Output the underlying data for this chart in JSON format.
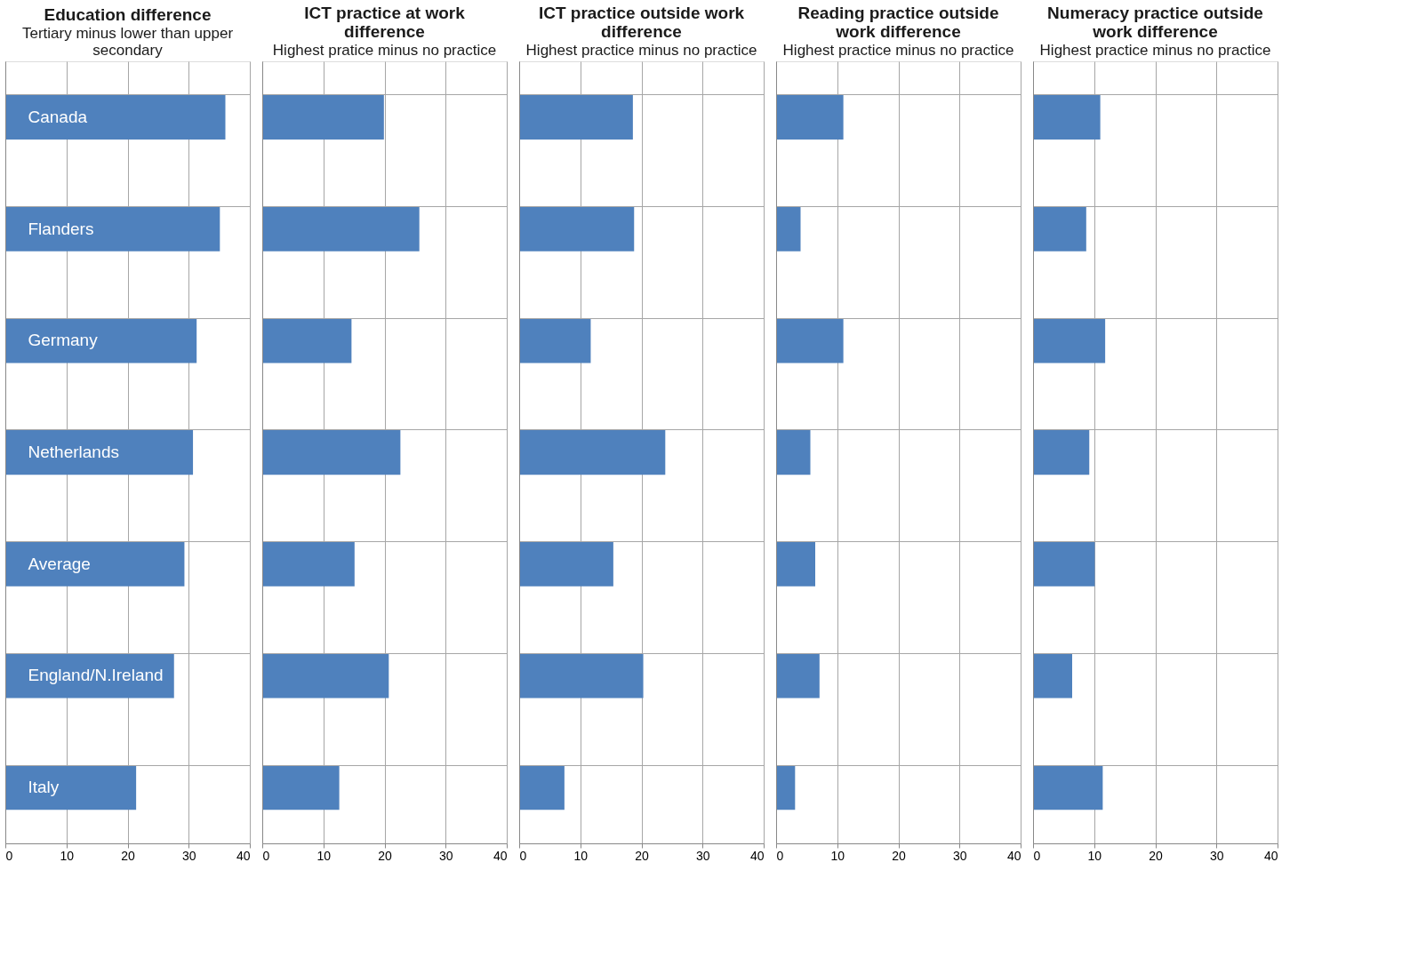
{
  "chart_data": [
    {
      "type": "bar",
      "orientation": "horizontal",
      "title": "Education  difference",
      "subtitle": "Tertiary minus lower than upper secondary",
      "categories": [
        "Canada",
        "Flanders",
        "Germany",
        "Netherlands",
        "Average",
        "England/N.Ireland",
        "Italy"
      ],
      "values": [
        36.0,
        35.1,
        31.3,
        30.7,
        29.3,
        27.6,
        21.4
      ],
      "color": "#4f81bd",
      "xlim": [
        0,
        40
      ],
      "xticks": [
        0,
        10,
        20,
        30,
        40
      ],
      "grid": true
    },
    {
      "type": "bar",
      "orientation": "horizontal",
      "title": "ICT practice at work difference",
      "subtitle": "Highest pratice minus no practice",
      "categories": [
        null,
        null,
        null,
        null,
        null,
        null,
        null
      ],
      "values": [
        19.9,
        25.7,
        14.6,
        22.6,
        15.1,
        20.7,
        12.6
      ],
      "color": "#4f81bd",
      "xlim": [
        0,
        40
      ],
      "xticks": [
        0,
        10,
        20,
        30,
        40
      ],
      "grid": true,
      "tick_labels": "x"
    },
    {
      "type": "bar",
      "orientation": "horizontal",
      "title": "ICT practice outside work difference",
      "subtitle": "Highest practice minus no practice",
      "categories": [
        null,
        null,
        null,
        null,
        null,
        null,
        null
      ],
      "values": [
        18.6,
        18.8,
        11.7,
        23.9,
        15.4,
        20.3,
        7.4
      ],
      "color": "#4f81bd",
      "xlim": [
        0,
        40
      ],
      "xticks": [
        0,
        10,
        20,
        30,
        40
      ],
      "grid": true,
      "tick_labels": "x"
    },
    {
      "type": "bar",
      "orientation": "horizontal",
      "title": "Reading practice outside work difference",
      "subtitle": "Highest practice minus no practice",
      "categories": [
        null,
        null,
        null,
        null,
        null,
        null,
        null
      ],
      "values": [
        11.0,
        4.0,
        11.0,
        5.6,
        6.4,
        7.1,
        3.1
      ],
      "color": "#4f81bd",
      "xlim": [
        0,
        40
      ],
      "xticks": [
        0,
        10,
        20,
        30,
        40
      ],
      "grid": true,
      "tick_labels": "x"
    },
    {
      "type": "bar",
      "orientation": "horizontal",
      "title": "Numeracy practice outside work difference",
      "subtitle": "Highest practice minus no practice",
      "categories": [
        null,
        null,
        null,
        null,
        null,
        null,
        null
      ],
      "values": [
        11.0,
        8.7,
        11.8,
        9.2,
        10.1,
        6.4,
        11.4
      ],
      "color": "#4f81bd",
      "xlim": [
        0,
        40
      ],
      "xticks": [
        0,
        10,
        20,
        30,
        40
      ],
      "grid": true,
      "tick_labels": "x"
    }
  ]
}
